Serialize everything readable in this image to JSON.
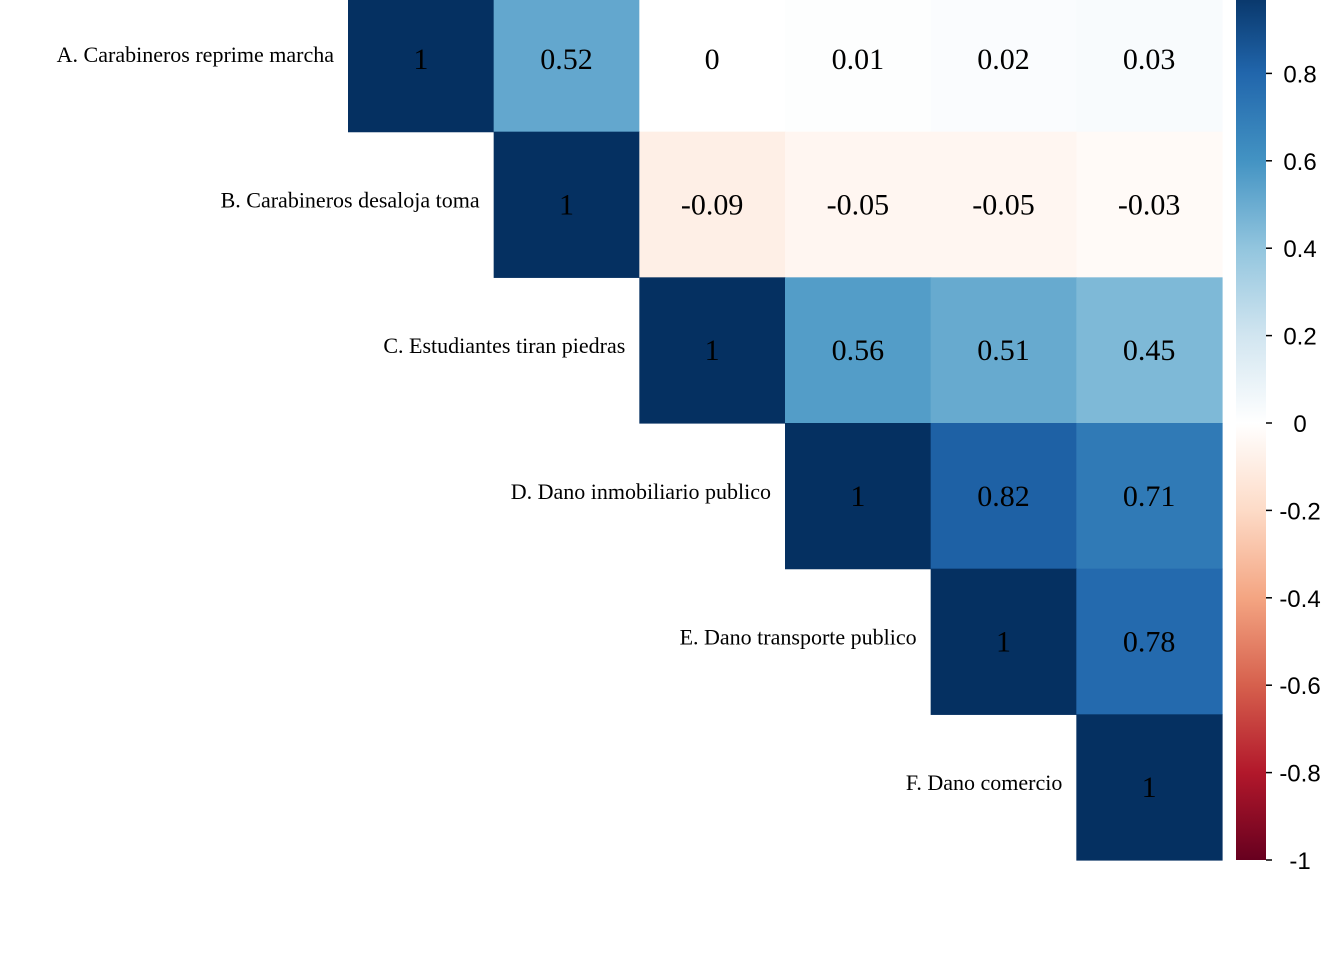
{
  "chart_data": {
    "type": "heatmap",
    "variables": [
      "A. Carabineros reprime marcha",
      "B. Carabineros desaloja toma",
      "C. Estudiantes tiran piedras",
      "D. Dano inmobiliario publico",
      "E. Dano transporte publico",
      "F. Dano comercio"
    ],
    "matrix": [
      [
        1,
        0.52,
        0,
        0.01,
        0.02,
        0.03
      ],
      [
        null,
        1,
        -0.09,
        -0.05,
        -0.05,
        -0.03
      ],
      [
        null,
        null,
        1,
        0.56,
        0.51,
        0.45
      ],
      [
        null,
        null,
        null,
        1,
        0.82,
        0.71
      ],
      [
        null,
        null,
        null,
        null,
        1,
        0.78
      ],
      [
        null,
        null,
        null,
        null,
        null,
        1
      ]
    ],
    "cell_labels": [
      [
        "1",
        "0.52",
        "0",
        "0.01",
        "0.02",
        "0.03"
      ],
      [
        null,
        "1",
        "-0.09",
        "-0.05",
        "-0.05",
        "-0.03"
      ],
      [
        null,
        null,
        "1",
        "0.56",
        "0.51",
        "0.45"
      ],
      [
        null,
        null,
        null,
        "1",
        "0.82",
        "0.71"
      ],
      [
        null,
        null,
        null,
        null,
        "1",
        "0.78"
      ],
      [
        null,
        null,
        null,
        null,
        null,
        "1"
      ]
    ],
    "triangle": "upper",
    "colorbar": {
      "range": [
        -1,
        1
      ],
      "ticks": [
        0.8,
        0.6,
        0.4,
        0.2,
        0,
        -0.2,
        -0.4,
        -0.6,
        -0.8,
        -1
      ],
      "tick_labels": [
        "0.8",
        "0.6",
        "0.4",
        "0.2",
        "0",
        "-0.2",
        "-0.4",
        "-0.6",
        "-0.8",
        "-1"
      ],
      "colors": [
        "#67001F",
        "#B2182B",
        "#D6604D",
        "#F4A582",
        "#FDDBC7",
        "#FFFFFF",
        "#D1E5F0",
        "#92C5DE",
        "#4393C3",
        "#2166AC",
        "#053061"
      ]
    }
  }
}
